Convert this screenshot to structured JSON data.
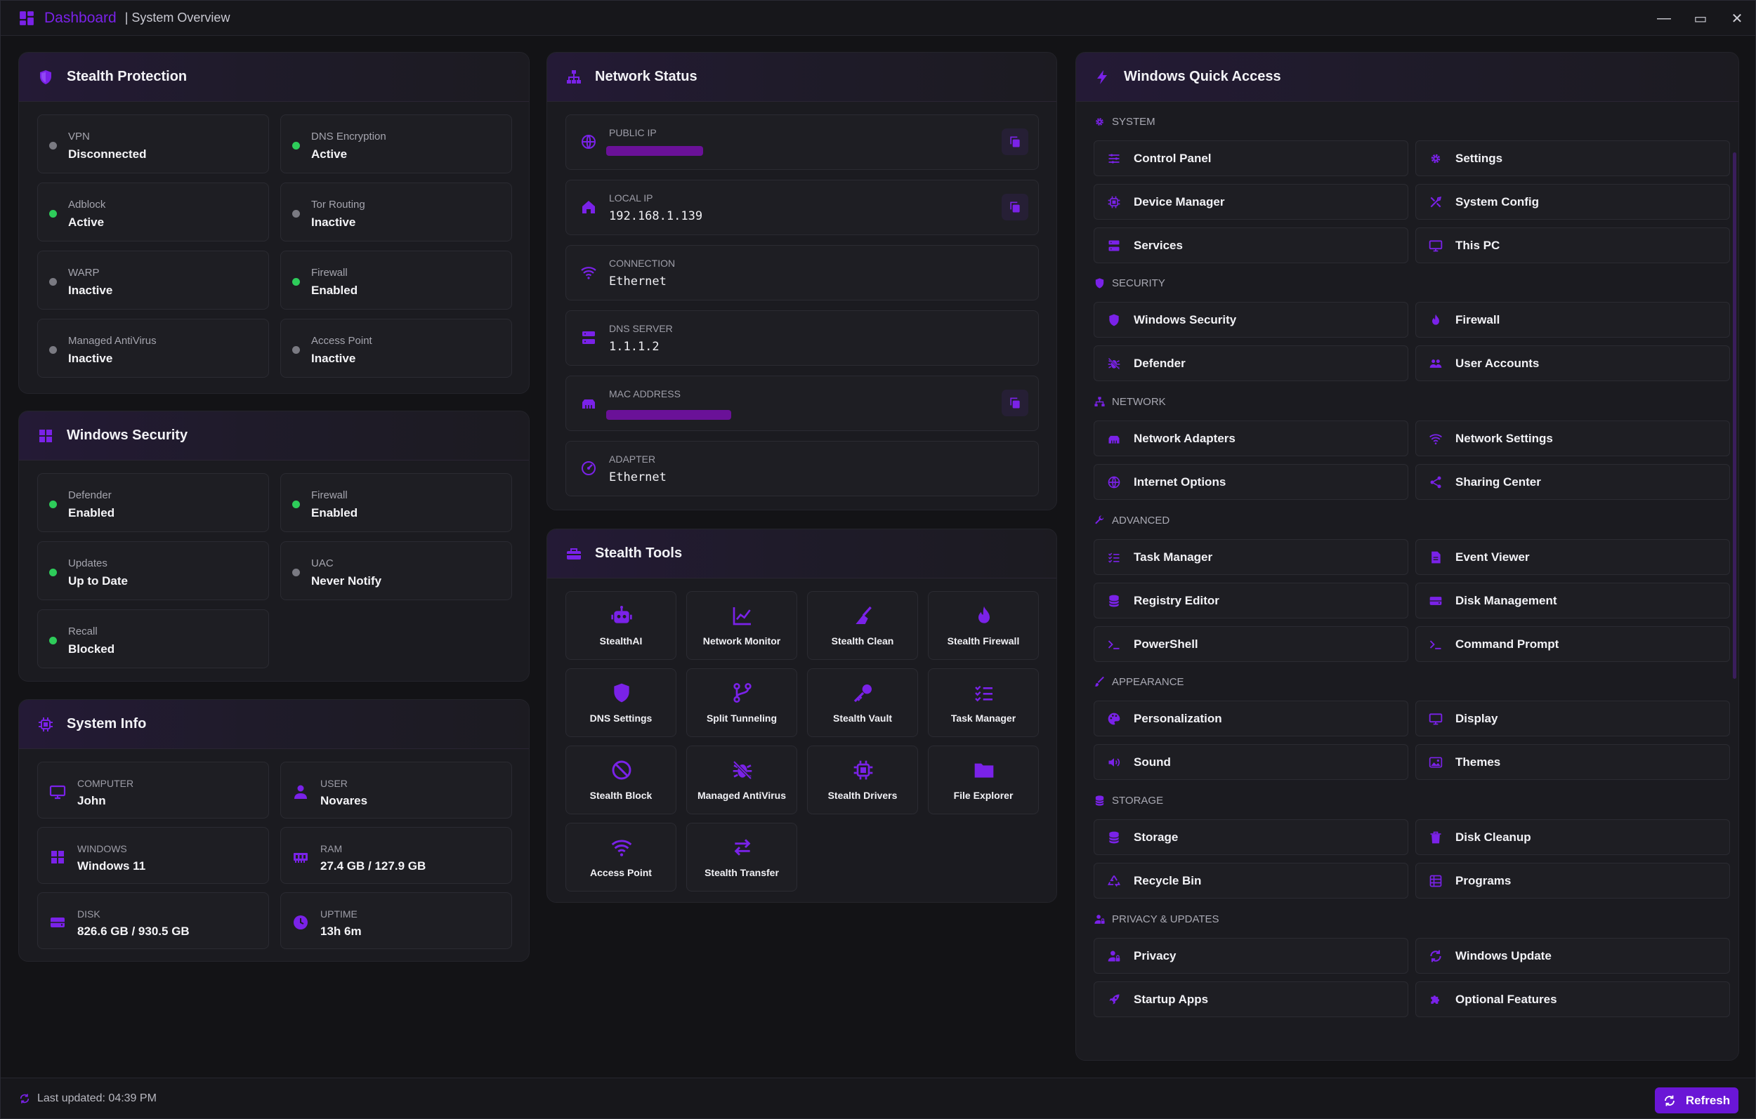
{
  "titlebar": {
    "app": "Dashboard",
    "subtitle": "| System Overview",
    "minimize": "—",
    "maximize": "▭",
    "close": "✕"
  },
  "colors": {
    "accent": "#7a22e8",
    "active": "#2ecc5a",
    "inactive": "#7a7a82",
    "mask": "#6a1198"
  },
  "stealth_protection": {
    "title": "Stealth Protection",
    "items": [
      {
        "label": "VPN",
        "value": "Disconnected",
        "on": false
      },
      {
        "label": "DNS Encryption",
        "value": "Active",
        "on": true
      },
      {
        "label": "Adblock",
        "value": "Active",
        "on": true
      },
      {
        "label": "Tor Routing",
        "value": "Inactive",
        "on": false
      },
      {
        "label": "WARP",
        "value": "Inactive",
        "on": false
      },
      {
        "label": "Firewall",
        "value": "Enabled",
        "on": true
      },
      {
        "label": "Managed AntiVirus",
        "value": "Inactive",
        "on": false
      },
      {
        "label": "Access Point",
        "value": "Inactive",
        "on": false
      }
    ]
  },
  "windows_security": {
    "title": "Windows Security",
    "items": [
      {
        "label": "Defender",
        "value": "Enabled",
        "on": true
      },
      {
        "label": "Firewall",
        "value": "Enabled",
        "on": true
      },
      {
        "label": "Updates",
        "value": "Up to Date",
        "on": true
      },
      {
        "label": "UAC",
        "value": "Never Notify",
        "on": false
      },
      {
        "label": "Recall",
        "value": "Blocked",
        "on": true
      }
    ]
  },
  "system_info": {
    "title": "System Info",
    "items": [
      {
        "label": "Computer",
        "value": "John",
        "icon": "monitor-icon"
      },
      {
        "label": "User",
        "value": "Novares",
        "icon": "user-icon"
      },
      {
        "label": "Windows",
        "value": "Windows 11",
        "icon": "windows-icon"
      },
      {
        "label": "RAM",
        "value": "27.4 GB / 127.9 GB",
        "icon": "memory-icon"
      },
      {
        "label": "Disk",
        "value": "826.6 GB / 930.5 GB",
        "icon": "disk-icon"
      },
      {
        "label": "Uptime",
        "value": "13h 6m",
        "icon": "clock-icon"
      }
    ]
  },
  "network_status": {
    "title": "Network Status",
    "rows": [
      {
        "label": "PUBLIC IP",
        "value": "",
        "masked": true,
        "copy": true,
        "icon": "globe-icon"
      },
      {
        "label": "LOCAL IP",
        "value": "192.168.1.139",
        "masked": false,
        "copy": true,
        "icon": "home-icon"
      },
      {
        "label": "CONNECTION",
        "value": "Ethernet",
        "masked": false,
        "copy": false,
        "icon": "wifi-icon"
      },
      {
        "label": "DNS SERVER",
        "value": "1.1.1.2",
        "masked": false,
        "copy": false,
        "icon": "server-icon"
      },
      {
        "label": "MAC ADDRESS",
        "value": "",
        "masked": true,
        "copy": true,
        "icon": "ethernet-icon"
      },
      {
        "label": "ADAPTER",
        "value": "Ethernet",
        "masked": false,
        "copy": false,
        "icon": "gauge-icon"
      }
    ]
  },
  "stealth_tools": {
    "title": "Stealth Tools",
    "items": [
      {
        "label": "StealthAI",
        "icon": "robot-icon"
      },
      {
        "label": "Network Monitor",
        "icon": "chart-line-icon"
      },
      {
        "label": "Stealth Clean",
        "icon": "broom-icon"
      },
      {
        "label": "Stealth Firewall",
        "icon": "flame-icon"
      },
      {
        "label": "DNS Settings",
        "icon": "shield-icon"
      },
      {
        "label": "Split Tunneling",
        "icon": "branch-icon"
      },
      {
        "label": "Stealth Vault",
        "icon": "key-icon"
      },
      {
        "label": "Task Manager",
        "icon": "tasks-icon"
      },
      {
        "label": "Stealth Block",
        "icon": "ban-icon"
      },
      {
        "label": "Managed AntiVirus",
        "icon": "bug-slash-icon"
      },
      {
        "label": "Stealth Drivers",
        "icon": "chip-icon"
      },
      {
        "label": "File Explorer",
        "icon": "folder-icon"
      },
      {
        "label": "Access Point",
        "icon": "wifi-icon"
      },
      {
        "label": "Stealth Transfer",
        "icon": "transfer-icon"
      }
    ]
  },
  "quick_access": {
    "title": "Windows Quick Access",
    "categories": [
      {
        "name": "SYSTEM",
        "icon": "gear-icon",
        "items": [
          {
            "label": "Control Panel",
            "icon": "sliders-icon"
          },
          {
            "label": "Settings",
            "icon": "gear-icon"
          },
          {
            "label": "Device Manager",
            "icon": "chip-icon"
          },
          {
            "label": "System Config",
            "icon": "tools-icon"
          },
          {
            "label": "Services",
            "icon": "server-icon"
          },
          {
            "label": "This PC",
            "icon": "monitor-icon"
          }
        ]
      },
      {
        "name": "SECURITY",
        "icon": "shield-icon",
        "items": [
          {
            "label": "Windows Security",
            "icon": "shield-icon"
          },
          {
            "label": "Firewall",
            "icon": "flame-icon"
          },
          {
            "label": "Defender",
            "icon": "bug-slash-icon"
          },
          {
            "label": "User Accounts",
            "icon": "users-icon"
          }
        ]
      },
      {
        "name": "NETWORK",
        "icon": "network-icon",
        "items": [
          {
            "label": "Network Adapters",
            "icon": "ethernet-icon"
          },
          {
            "label": "Network Settings",
            "icon": "wifi-icon"
          },
          {
            "label": "Internet Options",
            "icon": "globe-icon"
          },
          {
            "label": "Sharing Center",
            "icon": "share-icon"
          }
        ]
      },
      {
        "name": "ADVANCED",
        "icon": "wrench-icon",
        "items": [
          {
            "label": "Task Manager",
            "icon": "tasks-icon"
          },
          {
            "label": "Event Viewer",
            "icon": "file-icon"
          },
          {
            "label": "Registry Editor",
            "icon": "database-icon"
          },
          {
            "label": "Disk Management",
            "icon": "disk-icon"
          },
          {
            "label": "PowerShell",
            "icon": "terminal-icon"
          },
          {
            "label": "Command Prompt",
            "icon": "terminal-icon"
          }
        ]
      },
      {
        "name": "APPEARANCE",
        "icon": "brush-icon",
        "items": [
          {
            "label": "Personalization",
            "icon": "palette-icon"
          },
          {
            "label": "Display",
            "icon": "monitor-icon"
          },
          {
            "label": "Sound",
            "icon": "volume-icon"
          },
          {
            "label": "Themes",
            "icon": "image-icon"
          }
        ]
      },
      {
        "name": "STORAGE",
        "icon": "database-icon",
        "items": [
          {
            "label": "Storage",
            "icon": "database-icon"
          },
          {
            "label": "Disk Cleanup",
            "icon": "trash-icon"
          },
          {
            "label": "Recycle Bin",
            "icon": "recycle-icon"
          },
          {
            "label": "Programs",
            "icon": "grid-icon"
          }
        ]
      },
      {
        "name": "PRIVACY & UPDATES",
        "icon": "user-lock-icon",
        "items": [
          {
            "label": "Privacy",
            "icon": "user-lock-icon"
          },
          {
            "label": "Windows Update",
            "icon": "refresh-icon"
          },
          {
            "label": "Startup Apps",
            "icon": "rocket-icon"
          },
          {
            "label": "Optional Features",
            "icon": "puzzle-icon"
          }
        ]
      }
    ]
  },
  "statusbar": {
    "last_updated": "Last updated: 04:39 PM",
    "refresh": "Refresh"
  }
}
